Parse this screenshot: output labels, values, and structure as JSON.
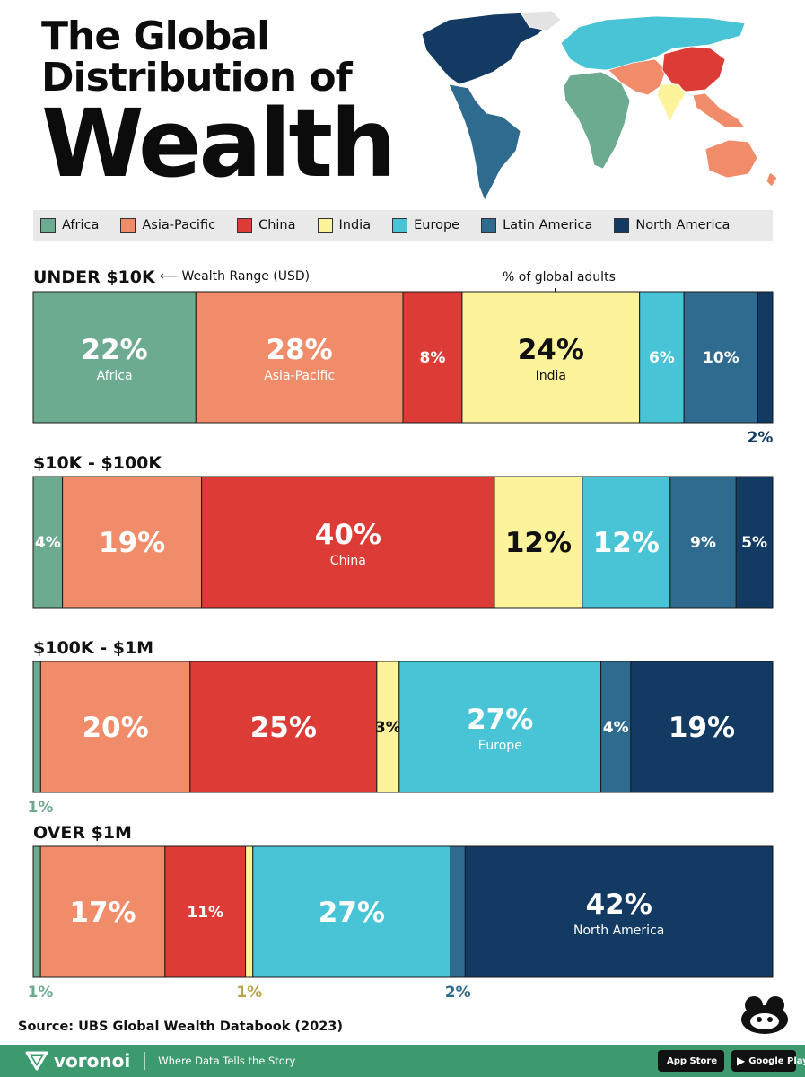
{
  "title": {
    "line1": "The Global",
    "line2": "Distribution of",
    "line3": "Wealth"
  },
  "legend": [
    {
      "label": "Africa",
      "color": "#6dab91"
    },
    {
      "label": "Asia-Pacific",
      "color": "#f08c6a"
    },
    {
      "label": "China",
      "color": "#dd3b36"
    },
    {
      "label": "India",
      "color": "#fdf39b"
    },
    {
      "label": "Europe",
      "color": "#48c4d6"
    },
    {
      "label": "Latin America",
      "color": "#2e6b8e"
    },
    {
      "label": "North America",
      "color": "#123a63"
    }
  ],
  "annotations": {
    "wealth_range": "Wealth Range (USD)",
    "global_adults": "% of global adults"
  },
  "chart_data": {
    "type": "bar",
    "subtype": "100% stacked horizontal",
    "regions": [
      "Africa",
      "Asia-Pacific",
      "China",
      "India",
      "Europe",
      "Latin America",
      "North America"
    ],
    "colors": [
      "#6dab91",
      "#f08c6a",
      "#dd3b36",
      "#fdf39b",
      "#48c4d6",
      "#2e6b8e",
      "#123a63"
    ],
    "groups": [
      {
        "name": "UNDER $10K",
        "values": [
          22,
          28,
          8,
          24,
          6,
          10,
          2
        ],
        "labels": [
          "22%",
          "28%",
          "8%",
          "24%",
          "6%",
          "10%",
          "2%"
        ],
        "sublabels": [
          "Africa",
          "Asia-Pacific",
          "",
          "India",
          "",
          "",
          ""
        ]
      },
      {
        "name": "$10K - $100K",
        "values": [
          4,
          19,
          40,
          12,
          12,
          9,
          5
        ],
        "labels": [
          "4%",
          "19%",
          "40%",
          "12%",
          "12%",
          "9%",
          "5%"
        ],
        "sublabels": [
          "",
          "",
          "China",
          "",
          "",
          "",
          ""
        ]
      },
      {
        "name": "$100K - $1M",
        "values": [
          1,
          20,
          25,
          3,
          27,
          4,
          19
        ],
        "labels": [
          "1%",
          "20%",
          "25%",
          "3%",
          "27%",
          "4%",
          "19%"
        ],
        "sublabels": [
          "",
          "",
          "",
          "",
          "Europe",
          "",
          ""
        ]
      },
      {
        "name": "OVER $1M",
        "values": [
          1,
          17,
          11,
          1,
          27,
          2,
          42
        ],
        "labels": [
          "1%",
          "17%",
          "11%",
          "1%",
          "27%",
          "2%",
          "42%"
        ],
        "sublabels": [
          "",
          "",
          "",
          "",
          "",
          "",
          "North America"
        ]
      }
    ]
  },
  "source": "Source: UBS Global Wealth Databook (2023)",
  "footer": {
    "brand": "voronoi",
    "tagline": "Where Data Tells the Story",
    "app_store": "App Store",
    "google_play": "Google Play"
  }
}
